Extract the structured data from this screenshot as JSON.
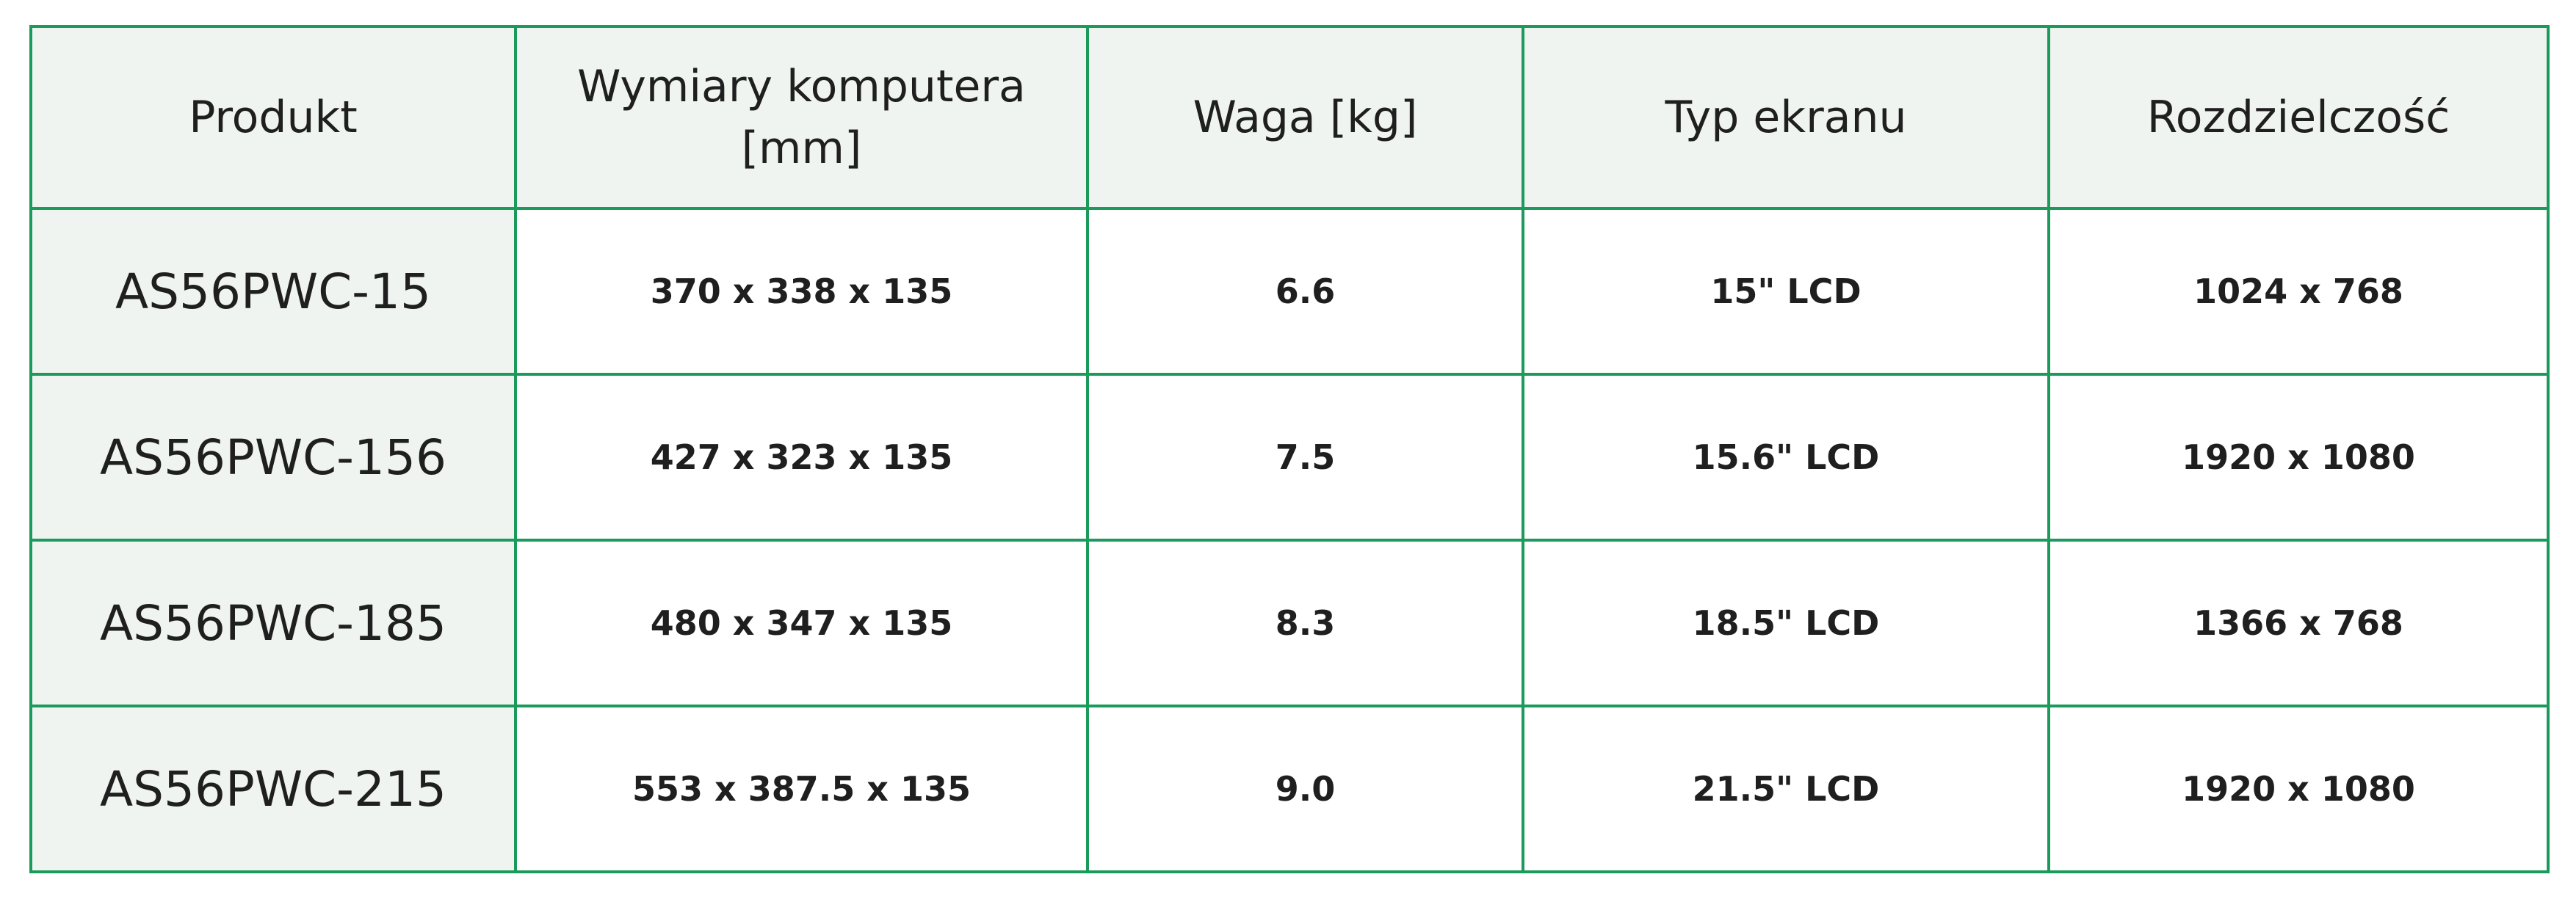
{
  "table": {
    "header": [
      "Produkt",
      "Wymiary komputera [mm]",
      "Waga [kg]",
      "Typ ekranu",
      "Rozdzielczość"
    ],
    "rows": [
      [
        "AS56PWC-15",
        "370 x 338 x 135",
        "6.6",
        "15\" LCD",
        "1024 x 768"
      ],
      [
        "AS56PWC-156",
        "427 x 323 x 135",
        "7.5",
        "15.6\" LCD",
        "1920 x 1080"
      ],
      [
        "AS56PWC-185",
        "480 x 347 x 135",
        "8.3",
        "18.5\" LCD",
        "1366 x 768"
      ],
      [
        "AS56PWC-215",
        "553 x 387.5 x 135",
        "9.0",
        "21.5\" LCD",
        "1920 x 1080"
      ]
    ]
  }
}
